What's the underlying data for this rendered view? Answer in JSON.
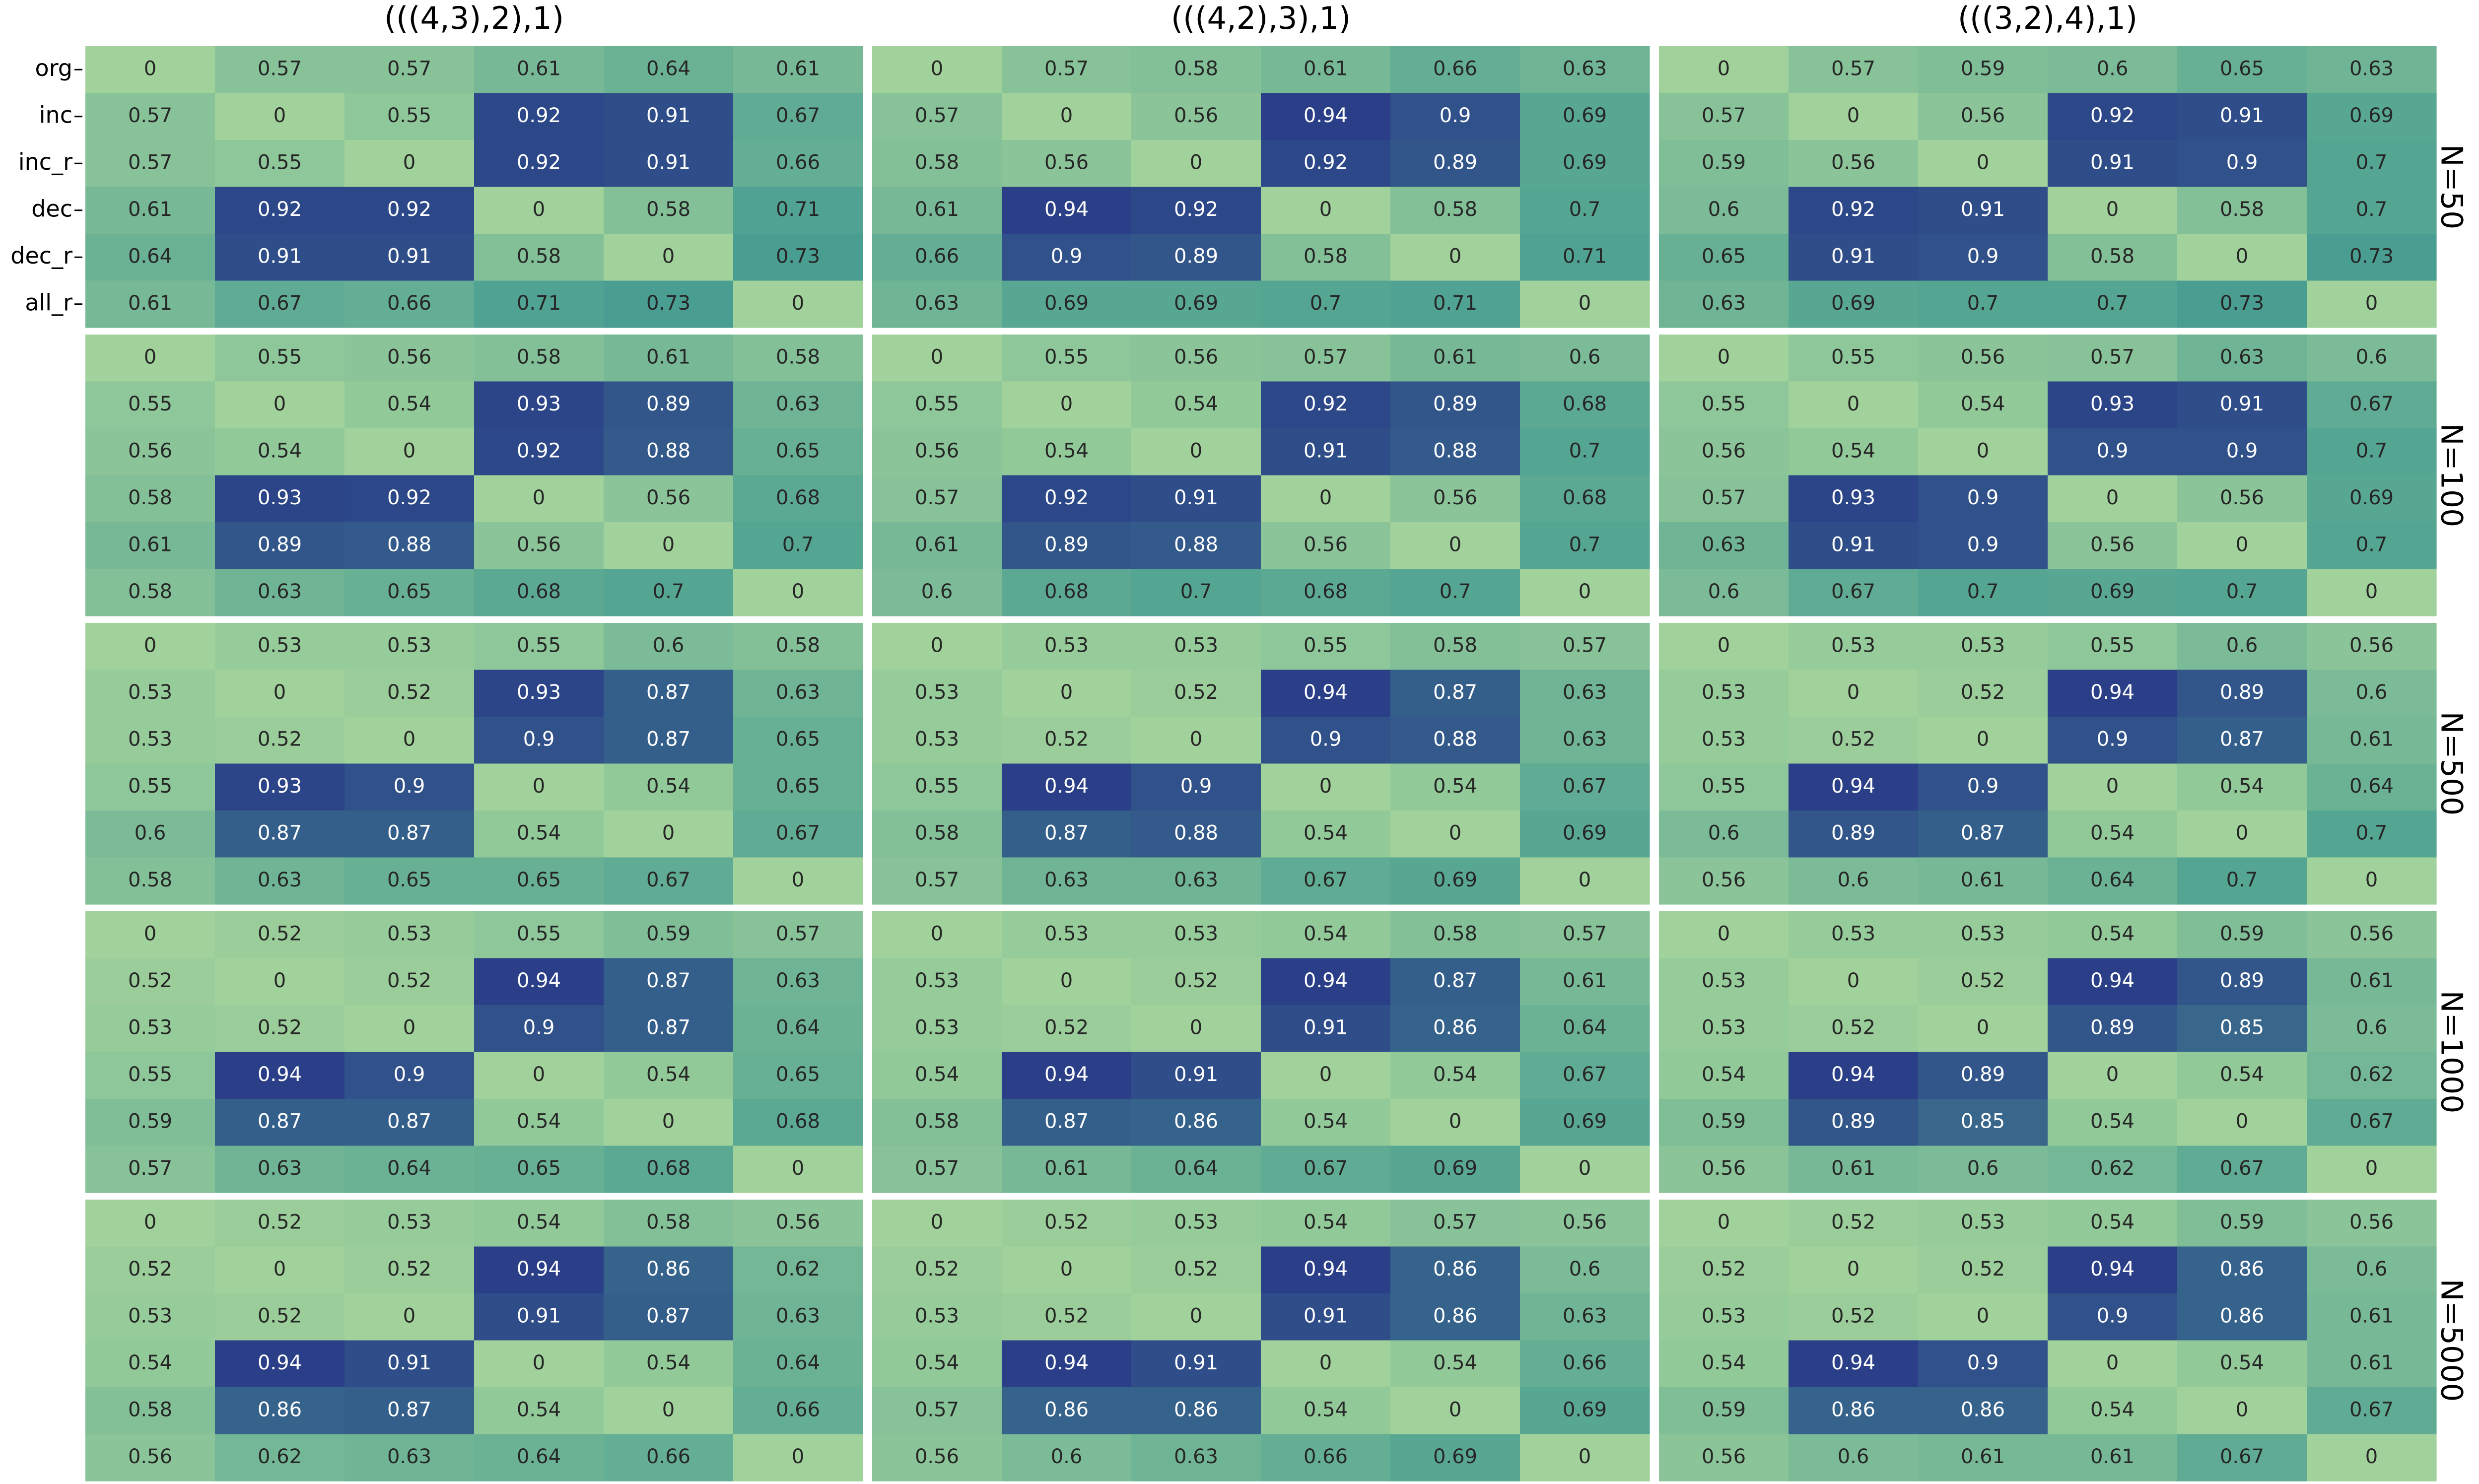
{
  "chart_data": {
    "type": "heatmap",
    "colormap": {
      "low": "#a2d29b",
      "mid": "#4a9f91",
      "high": "#293b87",
      "range": [
        0.5,
        0.95
      ]
    },
    "column_titles": [
      "(((4,3),2),1)",
      "(((4,2),3),1)",
      "(((3,2),4),1)"
    ],
    "row_titles": [
      "N=50",
      "N=100",
      "N=500",
      "N=1000",
      "N=5000"
    ],
    "tick_labels": [
      "org",
      "inc",
      "inc_r",
      "dec",
      "dec_r",
      "all_r"
    ],
    "panels": [
      [
        [
          [
            0,
            0.57,
            0.57,
            0.61,
            0.64,
            0.61
          ],
          [
            0.57,
            0,
            0.55,
            0.92,
            0.91,
            0.67
          ],
          [
            0.57,
            0.55,
            0,
            0.92,
            0.91,
            0.66
          ],
          [
            0.61,
            0.92,
            0.92,
            0,
            0.58,
            0.71
          ],
          [
            0.64,
            0.91,
            0.91,
            0.58,
            0,
            0.73
          ],
          [
            0.61,
            0.67,
            0.66,
            0.71,
            0.73,
            0
          ]
        ],
        [
          [
            0,
            0.57,
            0.58,
            0.61,
            0.66,
            0.63
          ],
          [
            0.57,
            0,
            0.56,
            0.94,
            0.9,
            0.69
          ],
          [
            0.58,
            0.56,
            0,
            0.92,
            0.89,
            0.69
          ],
          [
            0.61,
            0.94,
            0.92,
            0,
            0.58,
            0.7
          ],
          [
            0.66,
            0.9,
            0.89,
            0.58,
            0,
            0.71
          ],
          [
            0.63,
            0.69,
            0.69,
            0.7,
            0.71,
            0
          ]
        ],
        [
          [
            0,
            0.57,
            0.59,
            0.6,
            0.65,
            0.63
          ],
          [
            0.57,
            0,
            0.56,
            0.92,
            0.91,
            0.69
          ],
          [
            0.59,
            0.56,
            0,
            0.91,
            0.9,
            0.7
          ],
          [
            0.6,
            0.92,
            0.91,
            0,
            0.58,
            0.7
          ],
          [
            0.65,
            0.91,
            0.9,
            0.58,
            0,
            0.73
          ],
          [
            0.63,
            0.69,
            0.7,
            0.7,
            0.73,
            0
          ]
        ]
      ],
      [
        [
          [
            0,
            0.55,
            0.56,
            0.58,
            0.61,
            0.58
          ],
          [
            0.55,
            0,
            0.54,
            0.93,
            0.89,
            0.63
          ],
          [
            0.56,
            0.54,
            0,
            0.92,
            0.88,
            0.65
          ],
          [
            0.58,
            0.93,
            0.92,
            0,
            0.56,
            0.68
          ],
          [
            0.61,
            0.89,
            0.88,
            0.56,
            0,
            0.7
          ],
          [
            0.58,
            0.63,
            0.65,
            0.68,
            0.7,
            0
          ]
        ],
        [
          [
            0,
            0.55,
            0.56,
            0.57,
            0.61,
            0.6
          ],
          [
            0.55,
            0,
            0.54,
            0.92,
            0.89,
            0.68
          ],
          [
            0.56,
            0.54,
            0,
            0.91,
            0.88,
            0.7
          ],
          [
            0.57,
            0.92,
            0.91,
            0,
            0.56,
            0.68
          ],
          [
            0.61,
            0.89,
            0.88,
            0.56,
            0,
            0.7
          ],
          [
            0.6,
            0.68,
            0.7,
            0.68,
            0.7,
            0
          ]
        ],
        [
          [
            0,
            0.55,
            0.56,
            0.57,
            0.63,
            0.6
          ],
          [
            0.55,
            0,
            0.54,
            0.93,
            0.91,
            0.67
          ],
          [
            0.56,
            0.54,
            0,
            0.9,
            0.9,
            0.7
          ],
          [
            0.57,
            0.93,
            0.9,
            0,
            0.56,
            0.69
          ],
          [
            0.63,
            0.91,
            0.9,
            0.56,
            0,
            0.7
          ],
          [
            0.6,
            0.67,
            0.7,
            0.69,
            0.7,
            0
          ]
        ]
      ],
      [
        [
          [
            0,
            0.53,
            0.53,
            0.55,
            0.6,
            0.58
          ],
          [
            0.53,
            0,
            0.52,
            0.93,
            0.87,
            0.63
          ],
          [
            0.53,
            0.52,
            0,
            0.9,
            0.87,
            0.65
          ],
          [
            0.55,
            0.93,
            0.9,
            0,
            0.54,
            0.65
          ],
          [
            0.6,
            0.87,
            0.87,
            0.54,
            0,
            0.67
          ],
          [
            0.58,
            0.63,
            0.65,
            0.65,
            0.67,
            0
          ]
        ],
        [
          [
            0,
            0.53,
            0.53,
            0.55,
            0.58,
            0.57
          ],
          [
            0.53,
            0,
            0.52,
            0.94,
            0.87,
            0.63
          ],
          [
            0.53,
            0.52,
            0,
            0.9,
            0.88,
            0.63
          ],
          [
            0.55,
            0.94,
            0.9,
            0,
            0.54,
            0.67
          ],
          [
            0.58,
            0.87,
            0.88,
            0.54,
            0,
            0.69
          ],
          [
            0.57,
            0.63,
            0.63,
            0.67,
            0.69,
            0
          ]
        ],
        [
          [
            0,
            0.53,
            0.53,
            0.55,
            0.6,
            0.56
          ],
          [
            0.53,
            0,
            0.52,
            0.94,
            0.89,
            0.6
          ],
          [
            0.53,
            0.52,
            0,
            0.9,
            0.87,
            0.61
          ],
          [
            0.55,
            0.94,
            0.9,
            0,
            0.54,
            0.64
          ],
          [
            0.6,
            0.89,
            0.87,
            0.54,
            0,
            0.7
          ],
          [
            0.56,
            0.6,
            0.61,
            0.64,
            0.7,
            0
          ]
        ]
      ],
      [
        [
          [
            0,
            0.52,
            0.53,
            0.55,
            0.59,
            0.57
          ],
          [
            0.52,
            0,
            0.52,
            0.94,
            0.87,
            0.63
          ],
          [
            0.53,
            0.52,
            0,
            0.9,
            0.87,
            0.64
          ],
          [
            0.55,
            0.94,
            0.9,
            0,
            0.54,
            0.65
          ],
          [
            0.59,
            0.87,
            0.87,
            0.54,
            0,
            0.68
          ],
          [
            0.57,
            0.63,
            0.64,
            0.65,
            0.68,
            0
          ]
        ],
        [
          [
            0,
            0.53,
            0.53,
            0.54,
            0.58,
            0.57
          ],
          [
            0.53,
            0,
            0.52,
            0.94,
            0.87,
            0.61
          ],
          [
            0.53,
            0.52,
            0,
            0.91,
            0.86,
            0.64
          ],
          [
            0.54,
            0.94,
            0.91,
            0,
            0.54,
            0.67
          ],
          [
            0.58,
            0.87,
            0.86,
            0.54,
            0,
            0.69
          ],
          [
            0.57,
            0.61,
            0.64,
            0.67,
            0.69,
            0
          ]
        ],
        [
          [
            0,
            0.53,
            0.53,
            0.54,
            0.59,
            0.56
          ],
          [
            0.53,
            0,
            0.52,
            0.94,
            0.89,
            0.61
          ],
          [
            0.53,
            0.52,
            0,
            0.89,
            0.85,
            0.6
          ],
          [
            0.54,
            0.94,
            0.89,
            0,
            0.54,
            0.62
          ],
          [
            0.59,
            0.89,
            0.85,
            0.54,
            0,
            0.67
          ],
          [
            0.56,
            0.61,
            0.6,
            0.62,
            0.67,
            0
          ]
        ]
      ],
      [
        [
          [
            0,
            0.52,
            0.53,
            0.54,
            0.58,
            0.56
          ],
          [
            0.52,
            0,
            0.52,
            0.94,
            0.86,
            0.62
          ],
          [
            0.53,
            0.52,
            0,
            0.91,
            0.87,
            0.63
          ],
          [
            0.54,
            0.94,
            0.91,
            0,
            0.54,
            0.64
          ],
          [
            0.58,
            0.86,
            0.87,
            0.54,
            0,
            0.66
          ],
          [
            0.56,
            0.62,
            0.63,
            0.64,
            0.66,
            0
          ]
        ],
        [
          [
            0,
            0.52,
            0.53,
            0.54,
            0.57,
            0.56
          ],
          [
            0.52,
            0,
            0.52,
            0.94,
            0.86,
            0.6
          ],
          [
            0.53,
            0.52,
            0,
            0.91,
            0.86,
            0.63
          ],
          [
            0.54,
            0.94,
            0.91,
            0,
            0.54,
            0.66
          ],
          [
            0.57,
            0.86,
            0.86,
            0.54,
            0,
            0.69
          ],
          [
            0.56,
            0.6,
            0.63,
            0.66,
            0.69,
            0
          ]
        ],
        [
          [
            0,
            0.52,
            0.53,
            0.54,
            0.59,
            0.56
          ],
          [
            0.52,
            0,
            0.52,
            0.94,
            0.86,
            0.6
          ],
          [
            0.53,
            0.52,
            0,
            0.9,
            0.86,
            0.61
          ],
          [
            0.54,
            0.94,
            0.9,
            0,
            0.54,
            0.61
          ],
          [
            0.59,
            0.86,
            0.86,
            0.54,
            0,
            0.67
          ],
          [
            0.56,
            0.6,
            0.61,
            0.61,
            0.67,
            0
          ]
        ]
      ]
    ]
  }
}
